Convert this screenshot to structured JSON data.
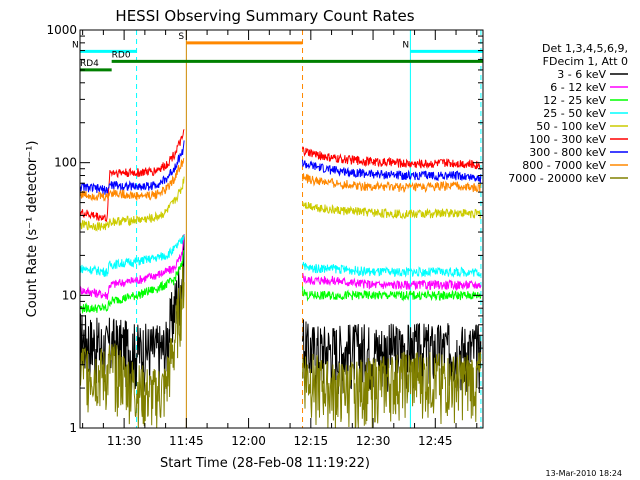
{
  "chart_data": {
    "type": "line",
    "title": "HESSI Observing Summary Count Rates",
    "xlabel": "Start Time (28-Feb-08 11:19:22)",
    "ylabel": "Count Rate (s⁻¹ detector⁻¹)",
    "y_scale": "log",
    "ylim": [
      1,
      1000
    ],
    "xlim": [
      "11:19:22",
      "12:56:30"
    ],
    "x_ticks": [
      "11:30",
      "11:45",
      "12:00",
      "12:15",
      "12:30",
      "12:45"
    ],
    "y_ticks": [
      "1",
      "10",
      "100",
      "1000"
    ],
    "grid": false,
    "legend_position": "right",
    "legend_header": [
      "Det 1,3,4,5,6,9,",
      "FDecim 1, Att 0"
    ],
    "series": [
      {
        "name": "3 - 6 keV",
        "color": "#000000",
        "x": [
          "11:19:22",
          "11:26",
          "11:26.5",
          "11:33",
          "11:37",
          "11:40",
          "11:42",
          "11:44",
          "11:44.5",
          "12:13",
          "12:14",
          "12:20",
          "12:30",
          "12:40",
          "12:50",
          "12:56"
        ],
        "y": [
          5,
          4,
          4.5,
          4,
          4,
          4,
          8,
          14,
          25,
          5,
          4,
          4,
          4,
          4,
          4,
          4
        ]
      },
      {
        "name": "6 - 12 keV",
        "color": "#ff00ff",
        "x": [
          "11:19:22",
          "11:26",
          "11:26.5",
          "11:33",
          "11:37",
          "11:40",
          "11:42",
          "11:44",
          "11:44.5",
          "12:13",
          "12:14",
          "12:20",
          "12:30",
          "12:40",
          "12:50",
          "12:56"
        ],
        "y": [
          11,
          10,
          12,
          13,
          14,
          15,
          16,
          20,
          28,
          14,
          13,
          13,
          12,
          12,
          12,
          12
        ]
      },
      {
        "name": "12 - 25 keV",
        "color": "#00ff00",
        "x": [
          "11:19:22",
          "11:26",
          "11:26.5",
          "11:33",
          "11:37",
          "11:40",
          "11:42",
          "11:44",
          "11:44.5",
          "12:13",
          "12:14",
          "12:20",
          "12:30",
          "12:40",
          "12:50",
          "12:56"
        ],
        "y": [
          8,
          8,
          9,
          10,
          11,
          12,
          13,
          17,
          24,
          11,
          10,
          10,
          10,
          10,
          10,
          10
        ]
      },
      {
        "name": "25 - 50 keV",
        "color": "#00ffff",
        "x": [
          "11:19:22",
          "11:26",
          "11:26.5",
          "11:33",
          "11:37",
          "11:40",
          "11:42",
          "11:44",
          "11:44.5",
          "12:13",
          "12:14",
          "12:20",
          "12:30",
          "12:40",
          "12:50",
          "12:56"
        ],
        "y": [
          16,
          15,
          17,
          18,
          19,
          20,
          22,
          26,
          30,
          18,
          16,
          16,
          15,
          15,
          15,
          15
        ]
      },
      {
        "name": "50 - 100 keV",
        "color": "#cccc00",
        "x": [
          "11:19:22",
          "11:26",
          "11:26.5",
          "11:33",
          "11:37",
          "11:40",
          "11:42",
          "11:44",
          "11:44.5",
          "12:13",
          "12:14",
          "12:20",
          "12:30",
          "12:40",
          "12:50",
          "12:56"
        ],
        "y": [
          34,
          33,
          36,
          37,
          38,
          42,
          50,
          65,
          80,
          50,
          48,
          44,
          42,
          41,
          42,
          41
        ]
      },
      {
        "name": "100 - 300 keV",
        "color": "#ff0000",
        "x": [
          "11:19:22",
          "11:26",
          "11:26.5",
          "11:33",
          "11:37",
          "11:40",
          "11:42",
          "11:44",
          "11:44.5",
          "12:13",
          "12:14",
          "12:20",
          "12:30",
          "12:40",
          "12:50",
          "12:56"
        ],
        "y": [
          42,
          38,
          85,
          84,
          86,
          95,
          115,
          150,
          175,
          125,
          120,
          108,
          102,
          98,
          100,
          96
        ]
      },
      {
        "name": "300 - 800 keV",
        "color": "#0000ff",
        "x": [
          "11:19:22",
          "11:26",
          "11:26.5",
          "11:33",
          "11:37",
          "11:40",
          "11:42",
          "11:44",
          "11:44.5",
          "12:13",
          "12:14",
          "12:20",
          "12:30",
          "12:40",
          "12:50",
          "12:56"
        ],
        "y": [
          66,
          62,
          68,
          66,
          67,
          74,
          90,
          120,
          140,
          100,
          96,
          88,
          82,
          80,
          80,
          76
        ]
      },
      {
        "name": "800 - 7000 keV",
        "color": "#ff8800",
        "x": [
          "11:19:22",
          "11:26",
          "11:26.5",
          "11:33",
          "11:37",
          "11:40",
          "11:42",
          "11:44",
          "11:44.5",
          "12:13",
          "12:14",
          "12:20",
          "12:30",
          "12:40",
          "12:50",
          "12:56"
        ],
        "y": [
          58,
          55,
          60,
          56,
          57,
          62,
          75,
          100,
          115,
          78,
          75,
          70,
          66,
          65,
          67,
          64
        ]
      },
      {
        "name": "7000 - 20000 keV",
        "color": "#808000",
        "x": [
          "11:19:22",
          "11:26",
          "11:26.5",
          "11:33",
          "11:37",
          "11:40",
          "11:42",
          "11:44",
          "11:44.5",
          "12:13",
          "12:14",
          "12:20",
          "12:30",
          "12:40",
          "12:50",
          "12:56"
        ],
        "y": [
          3,
          2.5,
          3,
          2,
          1.8,
          2,
          4,
          10,
          16,
          3,
          2.5,
          2,
          2.2,
          2.5,
          2.3,
          2.5
        ]
      }
    ],
    "flags": [
      {
        "label": "N",
        "color": "#00ffff",
        "x_start": "11:19:22",
        "x_end": "11:33",
        "level": 690
      },
      {
        "label": "N",
        "color": "#00ffff",
        "x_start": "12:39",
        "x_end": "12:56:30",
        "level": 690
      },
      {
        "label": "S",
        "color": "#ff8800",
        "x_start": "11:45",
        "x_end": "12:13",
        "level": 800
      },
      {
        "label": "RD0",
        "color": "#008000",
        "x_start": "11:27",
        "x_end": "12:56:30",
        "level": 580
      },
      {
        "label": "RD4",
        "color": "#008000",
        "x_start": "11:19:22",
        "x_end": "11:27",
        "level": 500
      }
    ],
    "vertical_markers": [
      {
        "x": "11:19:22",
        "color": "#00ffff",
        "style": "solid"
      },
      {
        "x": "11:33",
        "color": "#00ffff",
        "style": "dashed"
      },
      {
        "x": "11:45",
        "color": "#cc8800",
        "style": "solid"
      },
      {
        "x": "12:13",
        "color": "#ff8800",
        "style": "dashed"
      },
      {
        "x": "12:39",
        "color": "#00ffff",
        "style": "solid"
      },
      {
        "x": "12:56",
        "color": "#00ffff",
        "style": "dashed"
      }
    ],
    "footer_date": "13-Mar-2010 18:24"
  }
}
